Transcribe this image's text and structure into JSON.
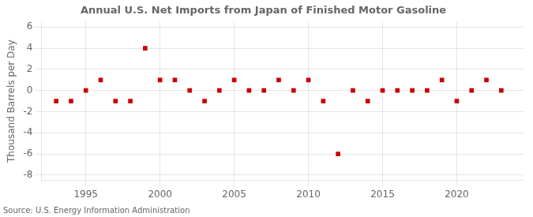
{
  "chart_data": {
    "type": "scatter",
    "title": "Annual U.S. Net Imports from Japan of Finished Motor Gasoline",
    "ylabel": "Thousand Barrels per Day",
    "annotation": "Source: U.S. Energy Information Administration",
    "x": [
      1993,
      1994,
      1995,
      1996,
      1997,
      1998,
      1999,
      2000,
      2001,
      2002,
      2003,
      2004,
      2005,
      2006,
      2007,
      2008,
      2009,
      2010,
      2011,
      2012,
      2013,
      2014,
      2015,
      2016,
      2017,
      2018,
      2019,
      2020,
      2021,
      2022,
      2023
    ],
    "values": [
      -1,
      -1,
      0,
      1,
      -1,
      -1,
      4,
      1,
      1,
      0,
      -1,
      0,
      1,
      0,
      0,
      1,
      0,
      1,
      -1,
      -6,
      0,
      -1,
      0,
      0,
      0,
      0,
      1,
      -1,
      0,
      1,
      0
    ],
    "color": "#cc0000",
    "marker": "square",
    "xlim": [
      1992.0,
      2024.5
    ],
    "xticks": [
      1995,
      2000,
      2005,
      2010,
      2015,
      2020
    ],
    "ylim": [
      -8.5,
      6.5
    ],
    "yticks": [
      -8,
      -6,
      -4,
      -2,
      0,
      2,
      4,
      6
    ],
    "grid": true
  }
}
